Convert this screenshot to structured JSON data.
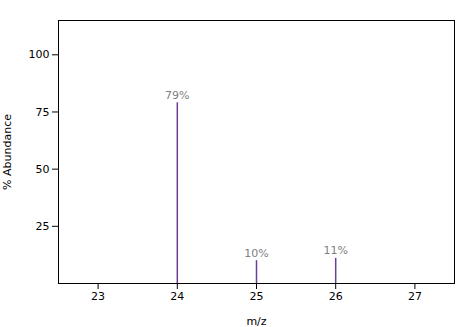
{
  "chart_data": {
    "type": "stem",
    "x": [
      24,
      25,
      26
    ],
    "values": [
      79,
      10,
      11
    ],
    "value_labels": [
      "79%",
      "10%",
      "11%"
    ],
    "data_labels": true,
    "color": "#6a3d9a",
    "xlim": [
      22.5,
      27.5
    ],
    "ylim": [
      0,
      115
    ],
    "xticks": [
      23,
      24,
      25,
      26,
      27
    ],
    "yticks": [
      25,
      50,
      75,
      100
    ],
    "xlabel": "m/z",
    "ylabel": "% Abundance",
    "grid": false
  }
}
